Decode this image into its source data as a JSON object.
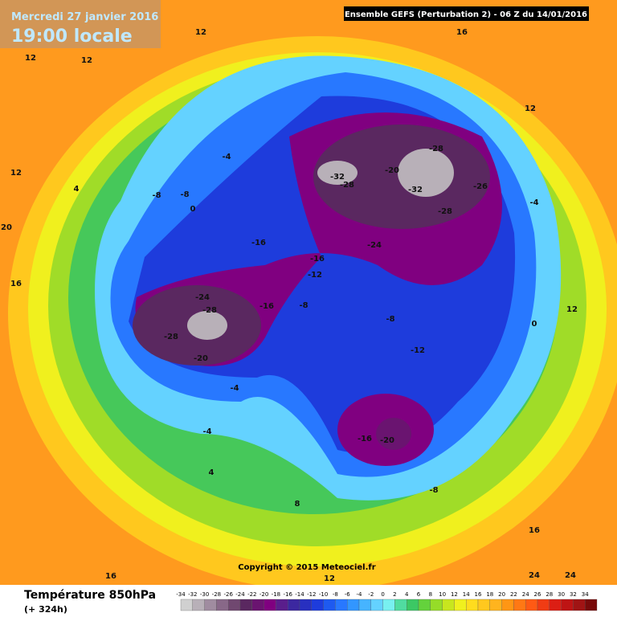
{
  "header": {
    "date": "Mercredi 27 janvier 2016",
    "time": "19:00 locale",
    "run": "Ensemble GEFS  (Perturbation 2)  - 06 Z du 14/01/2016"
  },
  "copyright": "Copyright © 2015 Meteociel.fr",
  "footer": {
    "title": "Température 850hPa",
    "lead": "(+ 324h)"
  },
  "legend": {
    "labels": [
      -34,
      -32,
      -30,
      -28,
      -26,
      -24,
      -22,
      -20,
      -18,
      -16,
      -14,
      -12,
      -10,
      -8,
      -6,
      -4,
      -2,
      0,
      2,
      4,
      6,
      8,
      10,
      12,
      14,
      16,
      18,
      20,
      22,
      24,
      26,
      28,
      30,
      32,
      34
    ],
    "colors": [
      "#d0d0d0",
      "#b8b0b8",
      "#a08ca0",
      "#886888",
      "#704870",
      "#5a2860",
      "#6a1470",
      "#800080",
      "#5a1e8c",
      "#3c28a0",
      "#2830c0",
      "#1e3cdc",
      "#1e5af0",
      "#2878ff",
      "#3296ff",
      "#46b4ff",
      "#64d2ff",
      "#78f0f0",
      "#50dca0",
      "#3cc864",
      "#64d23c",
      "#96dc28",
      "#c8e61e",
      "#f0f01e",
      "#ffdc1e",
      "#ffc81e",
      "#ffb41e",
      "#ff9614",
      "#ff7814",
      "#ff5a14",
      "#f03c14",
      "#dc1e14",
      "#be1414",
      "#a01414",
      "#780a0a"
    ]
  },
  "map_labels": [
    "12",
    "12",
    "12",
    "16",
    "12",
    "12",
    "4",
    "-4",
    "-8",
    "-8",
    "0",
    "-28",
    "-32",
    "-28",
    "-20",
    "-32",
    "-26",
    "-28",
    "-24",
    "-16",
    "-16",
    "-12",
    "-24",
    "-28",
    "-28",
    "-20",
    "-16",
    "-8",
    "-4",
    "-8",
    "-12",
    "-16",
    "-20",
    "-8",
    "-4",
    "4",
    "8",
    "12",
    "16",
    "16",
    "24",
    "24",
    "20",
    "16",
    "12",
    "-4",
    "0"
  ]
}
